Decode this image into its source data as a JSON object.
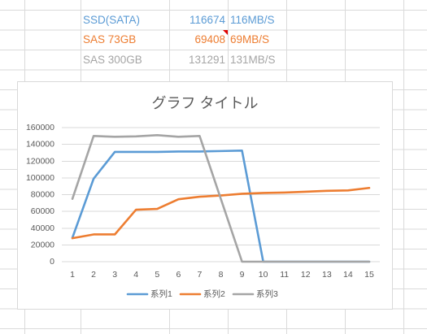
{
  "sheet": {
    "rows": [
      {
        "label": "SSD(SATA)",
        "value": "116674",
        "speed": "116MB/S",
        "color": "#5B9BD5"
      },
      {
        "label": "SAS 73GB",
        "value": "69408",
        "speed": "69MB/S",
        "color": "#ED7D31",
        "has_comment": true
      },
      {
        "label": "SAS 300GB",
        "value": "131291",
        "speed": "131MB/S",
        "color": "#A5A5A5"
      }
    ]
  },
  "chart_data": {
    "type": "line",
    "title": "グラフ タイトル",
    "categories": [
      "1",
      "2",
      "3",
      "4",
      "5",
      "6",
      "7",
      "8",
      "9",
      "10",
      "11",
      "12",
      "13",
      "14",
      "15"
    ],
    "yticks": [
      "0",
      "20000",
      "40000",
      "60000",
      "80000",
      "100000",
      "120000",
      "140000",
      "160000"
    ],
    "ylim": [
      0,
      160000
    ],
    "grid": true,
    "legend_position": "bottom",
    "series": [
      {
        "name": "系列1",
        "color": "#5B9BD5",
        "values": [
          28500,
          99000,
          131000,
          131000,
          131000,
          131500,
          131500,
          132000,
          132500,
          0,
          0,
          0,
          0,
          0,
          0
        ]
      },
      {
        "name": "系列2",
        "color": "#ED7D31",
        "values": [
          28000,
          32500,
          32500,
          62000,
          63000,
          74500,
          77500,
          79000,
          81000,
          82000,
          82500,
          83500,
          84500,
          85000,
          88000
        ]
      },
      {
        "name": "系列3",
        "color": "#A5A5A5",
        "values": [
          75000,
          150000,
          149000,
          149500,
          151000,
          149000,
          150000,
          75000,
          0,
          0,
          0,
          0,
          0,
          0,
          0
        ]
      }
    ]
  }
}
